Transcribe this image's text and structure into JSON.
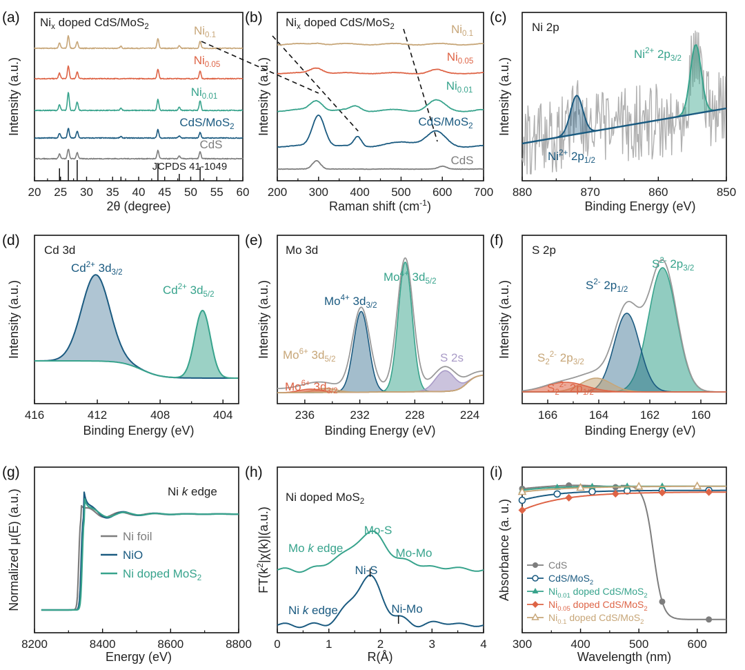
{
  "colors": {
    "gray": "#7d7d7d",
    "navy": "#1a5a80",
    "teal": "#37a38c",
    "tan": "#c7a678",
    "coral": "#de6446",
    "lavender": "#a99bc7",
    "light_gray": "#9a9a9a"
  },
  "panels": {
    "a": {
      "letter": "(a)",
      "title_main": "Ni",
      "title_sub": "x",
      "title_rest": " doped CdS/MoS",
      "title_sub2": "2",
      "xlabel_pre": "2",
      "xlabel_theta": "θ",
      "xlabel_post": " (degree)",
      "ylabel": "Intensity (a.u.)",
      "xticks": [
        "20",
        "25",
        "30",
        "35",
        "40",
        "45",
        "50",
        "55",
        "60"
      ],
      "labels": [
        {
          "main": "Ni",
          "sub": "0.1"
        },
        {
          "main": "Ni",
          "sub": "0.05"
        },
        {
          "main": "Ni",
          "sub": "0.01"
        },
        {
          "main": "CdS/MoS",
          "sub": "2"
        },
        {
          "main": "CdS",
          "sub": ""
        }
      ],
      "reference": "JCPDS 41-1049",
      "ref_lines": [
        24.8,
        26.5,
        28.2,
        36.6,
        43.7,
        47.8,
        51.8
      ]
    },
    "b": {
      "letter": "(b)",
      "title_main": "Ni",
      "title_sub": "x",
      "title_rest": " doped CdS/MoS",
      "title_sub2": "2",
      "xlabel": "Raman shift (cm",
      "xlabel_sup": "-1",
      "xlabel_end": ")",
      "ylabel": "Intensity (a.u.)",
      "xticks": [
        "200",
        "300",
        "400",
        "500",
        "600",
        "700"
      ],
      "labels": [
        {
          "main": "Ni",
          "sub": "0.1"
        },
        {
          "main": "Ni",
          "sub": "0.05"
        },
        {
          "main": "Ni",
          "sub": "0.01"
        },
        {
          "main": "CdS/MoS",
          "sub": "2"
        },
        {
          "main": "CdS",
          "sub": ""
        }
      ]
    },
    "c": {
      "letter": "(c)",
      "title": "Ni 2p",
      "xlabel": "Binding Energy (eV)",
      "ylabel": "Intensity (a.u.)",
      "xticks": [
        "880",
        "870",
        "860",
        "850"
      ],
      "peak1": {
        "ion": "Ni",
        "charge": "2+",
        "orb": "2p",
        "frac": "3/2"
      },
      "peak2": {
        "ion": "Ni",
        "charge": "2+",
        "orb": "2p",
        "frac": "1/2"
      }
    },
    "d": {
      "letter": "(d)",
      "title": "Cd 3d",
      "xlabel": "Binding Energy (eV)",
      "ylabel": "Intensity (a.u.)",
      "xticks": [
        "416",
        "412",
        "408",
        "404"
      ],
      "peak1": {
        "ion": "Cd",
        "charge": "2+",
        "orb": "3d",
        "frac": "3/2"
      },
      "peak2": {
        "ion": "Cd",
        "charge": "2+",
        "orb": "3d",
        "frac": "5/2"
      }
    },
    "e": {
      "letter": "(e)",
      "title": "Mo 3d",
      "xlabel": "Binding Energy (eV)",
      "ylabel": "Intensity (a.u.)",
      "xticks": [
        "236",
        "232",
        "228",
        "224"
      ],
      "peaks": [
        {
          "ion": "Mo",
          "charge": "4+",
          "orb": "3d",
          "frac": "5/2"
        },
        {
          "ion": "Mo",
          "charge": "4+",
          "orb": "3d",
          "frac": "3/2"
        },
        {
          "ion": "Mo",
          "charge": "6+",
          "orb": "3d",
          "frac": "5/2"
        },
        {
          "ion": "Mo",
          "charge": "6+",
          "orb": "3d",
          "frac": "3/2"
        }
      ],
      "s2s": "S 2s"
    },
    "f": {
      "letter": "(f)",
      "title": "S 2p",
      "xlabel": "Binding Energy (eV)",
      "ylabel": "Intensity (a.u.)",
      "xticks": [
        "166",
        "164",
        "162",
        "160"
      ],
      "peaks": [
        {
          "ion": "S",
          "charge": "2-",
          "orb": "2p",
          "frac": "3/2"
        },
        {
          "ion": "S",
          "charge": "2-",
          "orb": "2p",
          "frac": "1/2"
        }
      ],
      "peaks_s2": [
        {
          "ion": "S",
          "sub": "2",
          "charge": "2-",
          "orb": "2p",
          "frac": "3/2"
        },
        {
          "ion": "S",
          "sub": "2",
          "charge": "2-",
          "orb": "2p",
          "frac": "1/2"
        }
      ]
    },
    "g": {
      "letter": "(g)",
      "title_pre": "Ni ",
      "title_italic": "k",
      "title_post": " edge",
      "xlabel": "Energy (eV)",
      "ylabel": "Normalized μ(E) (a.u.)",
      "xticks": [
        "8200",
        "8400",
        "8600",
        "8800"
      ],
      "legend": [
        "Ni foil",
        "NiO",
        "Ni doped MoS"
      ],
      "legend_sub": "2"
    },
    "h": {
      "letter": "(h)",
      "title": "Ni doped MoS",
      "title_sub": "2",
      "xlabel": "R(Å)",
      "ylabel": "FT(k",
      "ylabel_sup": "2",
      "ylabel_rest": "|χ(k)|(a.u.)",
      "xticks": [
        "0",
        "1",
        "2",
        "3",
        "4"
      ],
      "mo_edge_pre": "Mo ",
      "mo_edge_italic": "k",
      "mo_edge_post": " edge",
      "ni_edge_pre": "Ni  ",
      "ni_edge_italic": "k",
      "ni_edge_post": " edge",
      "bonds": [
        "Mo-S",
        "Mo-Mo",
        "Ni-S",
        "Ni-Mo"
      ]
    },
    "i": {
      "letter": "(i)",
      "xlabel": "Wavelength (nm)",
      "ylabel": "Absorbance (a. u.)",
      "xticks": [
        "300",
        "400",
        "500",
        "600"
      ],
      "legend": [
        {
          "pre": "CdS",
          "sub": "",
          "post": ""
        },
        {
          "pre": "CdS/MoS",
          "sub": "2",
          "post": ""
        },
        {
          "pre": "Ni",
          "sub": "0.01",
          "post": " doped CdS/MoS",
          "sub2": "2"
        },
        {
          "pre": "Ni",
          "sub": "0.05",
          "post": " doped CdS/MoS",
          "sub2": "2"
        },
        {
          "pre": "Ni",
          "sub": "0.1",
          "post": " doped CdS/MoS",
          "sub2": "2"
        }
      ]
    }
  },
  "chart_data": [
    {
      "type": "line",
      "panel": "a",
      "xlim": [
        20,
        60
      ],
      "title": "Nix doped CdS/MoS2",
      "series": [
        {
          "name": "Ni0.1",
          "peaks": [
            24.8,
            26.5,
            28.2,
            36.6,
            43.7,
            47.8,
            51.8
          ]
        },
        {
          "name": "Ni0.05",
          "peaks": [
            24.8,
            26.5,
            28.2,
            43.7,
            51.8
          ]
        },
        {
          "name": "Ni0.01",
          "peaks": [
            24.8,
            26.5,
            28.2,
            43.7,
            47.8,
            51.8
          ]
        },
        {
          "name": "CdS/MoS2",
          "peaks": [
            24.8,
            26.5,
            28.2,
            43.7,
            51.8
          ]
        },
        {
          "name": "CdS",
          "peaks": [
            24.8,
            26.5,
            28.2,
            43.7,
            47.8,
            51.8
          ]
        }
      ]
    },
    {
      "type": "line",
      "panel": "b",
      "xlim": [
        200,
        700
      ],
      "dashed_markers": [
        290,
        395,
        585
      ],
      "series": [
        {
          "name": "Ni0.1"
        },
        {
          "name": "Ni0.05"
        },
        {
          "name": "Ni0.01"
        },
        {
          "name": "CdS/MoS2",
          "peaks": [
            300,
            395,
            585
          ]
        },
        {
          "name": "CdS",
          "peaks": [
            295,
            600
          ]
        }
      ]
    },
    {
      "type": "line",
      "panel": "c",
      "xlim": [
        880,
        850
      ],
      "peaks": [
        {
          "name": "Ni2+ 2p3/2",
          "x": 854.5
        },
        {
          "name": "Ni2+ 2p1/2",
          "x": 872
        }
      ]
    },
    {
      "type": "line",
      "panel": "d",
      "xlim": [
        416,
        403
      ],
      "peaks": [
        {
          "name": "Cd2+ 3d3/2",
          "x": 412.1
        },
        {
          "name": "Cd2+ 3d5/2",
          "x": 405.3
        }
      ]
    },
    {
      "type": "line",
      "panel": "e",
      "xlim": [
        238,
        223
      ],
      "peaks": [
        {
          "name": "Mo4+ 3d5/2",
          "x": 228.7
        },
        {
          "name": "Mo4+ 3d3/2",
          "x": 231.9
        },
        {
          "name": "Mo6+ 3d5/2",
          "x": 234.5
        },
        {
          "name": "Mo6+ 3d3/2",
          "x": 235.6
        },
        {
          "name": "S 2s",
          "x": 225.8
        }
      ]
    },
    {
      "type": "line",
      "panel": "f",
      "xlim": [
        167,
        159
      ],
      "peaks": [
        {
          "name": "S2- 2p3/2",
          "x": 161.5
        },
        {
          "name": "S2- 2p1/2",
          "x": 162.9
        },
        {
          "name": "S2 2- 2p3/2",
          "x": 164.1
        },
        {
          "name": "S2 2- 2p1/2",
          "x": 165.3
        }
      ]
    },
    {
      "type": "line",
      "panel": "g",
      "xlim": [
        8200,
        8800
      ],
      "series": [
        "Ni foil",
        "NiO",
        "Ni doped MoS2"
      ]
    },
    {
      "type": "line",
      "panel": "h",
      "xlim": [
        0,
        4
      ],
      "peaks": [
        {
          "name": "Mo-S",
          "x": 1.9
        },
        {
          "name": "Mo-Mo",
          "x": 2.6
        },
        {
          "name": "Ni-S",
          "x": 1.8
        },
        {
          "name": "Ni-Mo",
          "x": 2.35
        }
      ]
    },
    {
      "type": "line",
      "panel": "i",
      "xlim": [
        300,
        650
      ],
      "series": [
        {
          "name": "CdS",
          "x": [
            300,
            380,
            460,
            540,
            620
          ],
          "y": [
            0.87,
            0.89,
            0.89,
            0.3,
            0.08
          ]
        },
        {
          "name": "CdS/MoS2",
          "x": [
            300,
            360,
            420,
            480,
            540,
            620
          ],
          "y": [
            0.84,
            0.81,
            0.84,
            0.87,
            0.85,
            0.85
          ]
        },
        {
          "name": "Ni0.01 doped CdS/MoS2",
          "x": [
            300,
            360,
            420,
            480,
            540
          ],
          "y": [
            0.86,
            0.88,
            0.88,
            0.89,
            0.88
          ]
        },
        {
          "name": "Ni0.05 doped CdS/MoS2",
          "x": [
            300,
            380,
            460,
            540,
            620
          ],
          "y": [
            0.74,
            0.8,
            0.83,
            0.82,
            0.85
          ]
        },
        {
          "name": "Ni0.1 doped CdS/MoS2",
          "x": [
            300,
            400,
            500,
            600
          ],
          "y": [
            0.85,
            0.86,
            0.88,
            0.88
          ]
        }
      ]
    }
  ]
}
